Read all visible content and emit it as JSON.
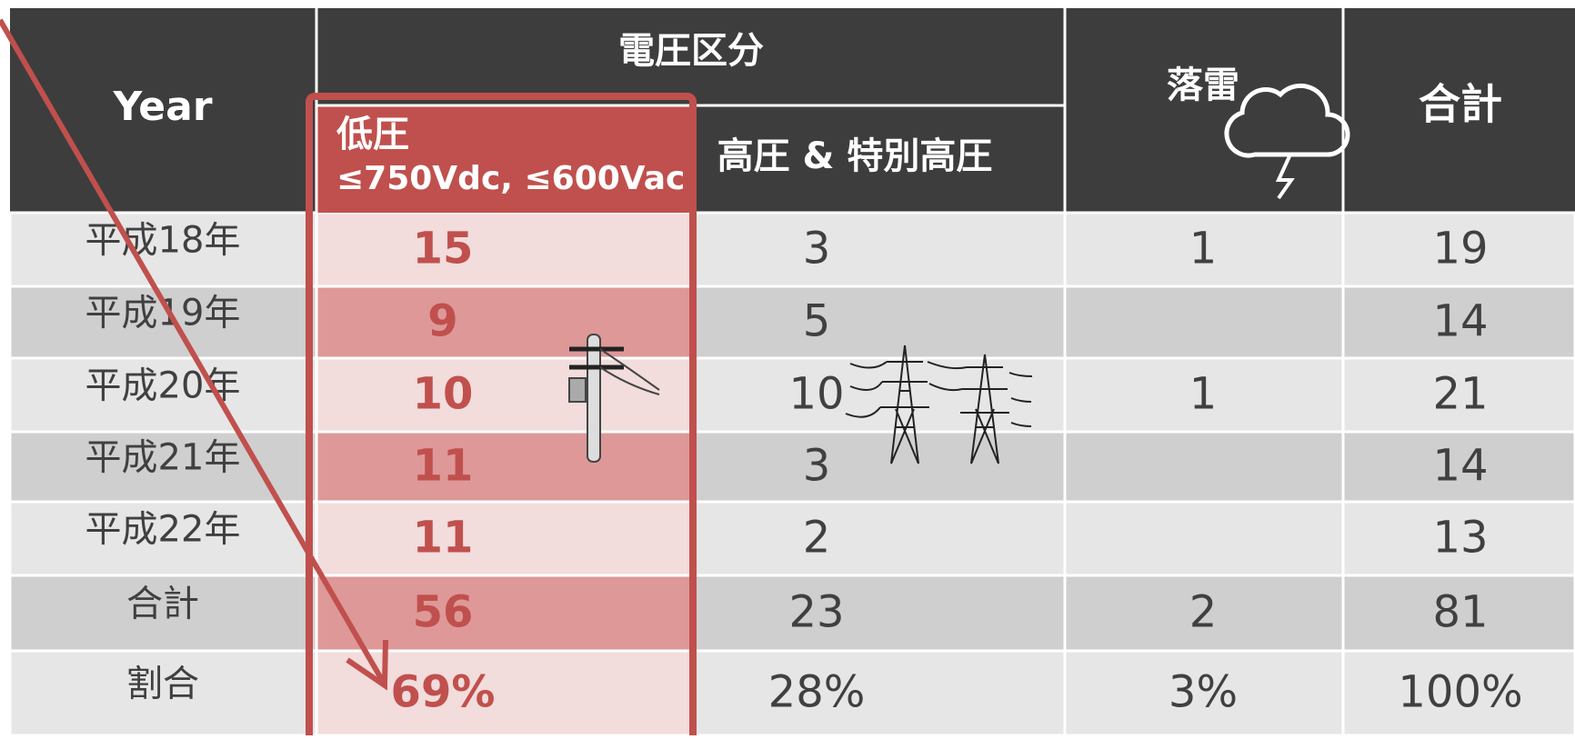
{
  "table": {
    "header": {
      "year": "Year",
      "group": "電圧区分",
      "low": "低圧",
      "low_sub": "≤750Vdc, ≤600Vac",
      "high": "高圧 & 特別高圧",
      "lightning": "落雷",
      "total": "合計"
    },
    "rows": [
      [
        "平成18年",
        "15",
        "3",
        "1",
        "19"
      ],
      [
        "平成19年",
        "9",
        "5",
        null,
        "14"
      ],
      [
        "平成20年",
        "10",
        "10",
        "1",
        "21"
      ],
      [
        "平成21年",
        "11",
        "3",
        null,
        "14"
      ],
      [
        "平成22年",
        "11",
        "2",
        null,
        "13"
      ],
      [
        "合計",
        "56",
        "23",
        "2",
        "81"
      ],
      [
        "割合",
        "69%",
        "28%",
        "3%",
        "100%"
      ]
    ]
  }
}
